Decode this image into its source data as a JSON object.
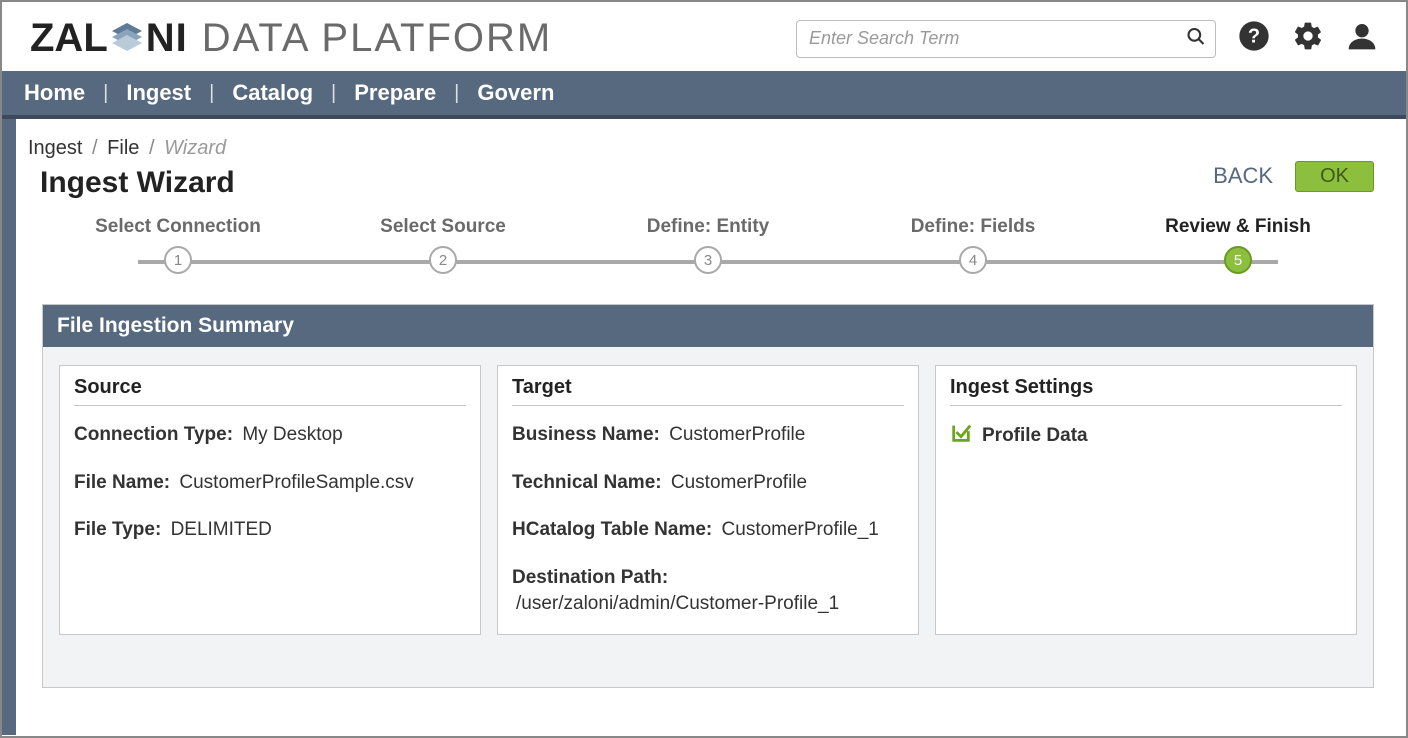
{
  "brand": {
    "strong_a": "ZAL",
    "strong_b": "NI",
    "light": "DATA PLATFORM"
  },
  "search": {
    "placeholder": "Enter Search Term"
  },
  "nav": {
    "items": [
      "Home",
      "Ingest",
      "Catalog",
      "Prepare",
      "Govern"
    ]
  },
  "breadcrumb": {
    "items": [
      "Ingest",
      "File"
    ],
    "current": "Wizard"
  },
  "page": {
    "title": "Ingest Wizard",
    "back_label": "BACK",
    "ok_label": "OK"
  },
  "stepper": {
    "steps": [
      {
        "label": "Select Connection",
        "num": "1",
        "active": false
      },
      {
        "label": "Select Source",
        "num": "2",
        "active": false
      },
      {
        "label": "Define: Entity",
        "num": "3",
        "active": false
      },
      {
        "label": "Define: Fields",
        "num": "4",
        "active": false
      },
      {
        "label": "Review & Finish",
        "num": "5",
        "active": true
      }
    ]
  },
  "summary": {
    "header": "File Ingestion Summary",
    "source": {
      "title": "Source",
      "connection_type_label": "Connection Type:",
      "connection_type_value": "My Desktop",
      "file_name_label": "File Name:",
      "file_name_value": "CustomerProfileSample.csv",
      "file_type_label": "File Type:",
      "file_type_value": "DELIMITED"
    },
    "target": {
      "title": "Target",
      "business_name_label": "Business Name:",
      "business_name_value": "CustomerProfile",
      "technical_name_label": "Technical Name:",
      "technical_name_value": "CustomerProfile",
      "hcatalog_label": "HCatalog Table Name:",
      "hcatalog_value": "CustomerProfile_1",
      "destination_label": "Destination Path:",
      "destination_value": "/user/zaloni/admin/Customer-Profile_1"
    },
    "settings": {
      "title": "Ingest Settings",
      "profile_data_label": "Profile Data"
    }
  }
}
